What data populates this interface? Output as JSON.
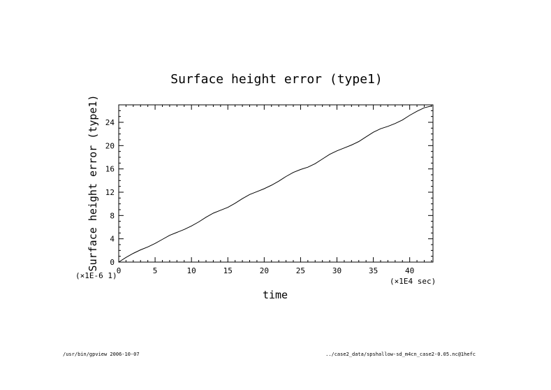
{
  "chart_data": {
    "type": "line",
    "title": "Surface height error (type1)",
    "xlabel": "time",
    "ylabel": "Surface height error (type1)",
    "x_scale_label": "(×1E4 sec)",
    "y_scale_label": "(×1E-6 1)",
    "xlim": [
      0,
      43.2
    ],
    "ylim": [
      0,
      27
    ],
    "x_ticks": [
      0,
      5,
      10,
      15,
      20,
      25,
      30,
      35,
      40
    ],
    "y_ticks": [
      0,
      4,
      8,
      12,
      16,
      20,
      24
    ],
    "x_minor_step": 1,
    "y_minor_step": 1,
    "grid": false,
    "series": [
      {
        "x": [
          0,
          1,
          2,
          3,
          4,
          5,
          6,
          7,
          8,
          9,
          10,
          11,
          12,
          13,
          14,
          15,
          16,
          17,
          18,
          19,
          20,
          21,
          22,
          23,
          24,
          25,
          26,
          27,
          28,
          29,
          30,
          31,
          32,
          33,
          34,
          35,
          36,
          37,
          38,
          39,
          40,
          41,
          42,
          43
        ],
        "values": [
          0,
          0.8,
          1.5,
          2.1,
          2.6,
          3.2,
          3.9,
          4.6,
          5.1,
          5.6,
          6.2,
          6.9,
          7.7,
          8.4,
          8.9,
          9.4,
          10.1,
          10.9,
          11.6,
          12.1,
          12.6,
          13.2,
          13.9,
          14.7,
          15.4,
          15.9,
          16.3,
          16.9,
          17.7,
          18.5,
          19.1,
          19.6,
          20.1,
          20.7,
          21.5,
          22.3,
          22.9,
          23.3,
          23.8,
          24.4,
          25.2,
          25.9,
          26.5,
          26.8
        ]
      }
    ]
  },
  "footer": {
    "left": "/usr/bin/gpview  2006-10-07",
    "right": "../case2_data/spshallow-sd_m4cn_case2-0.05.nc@1hefc"
  }
}
